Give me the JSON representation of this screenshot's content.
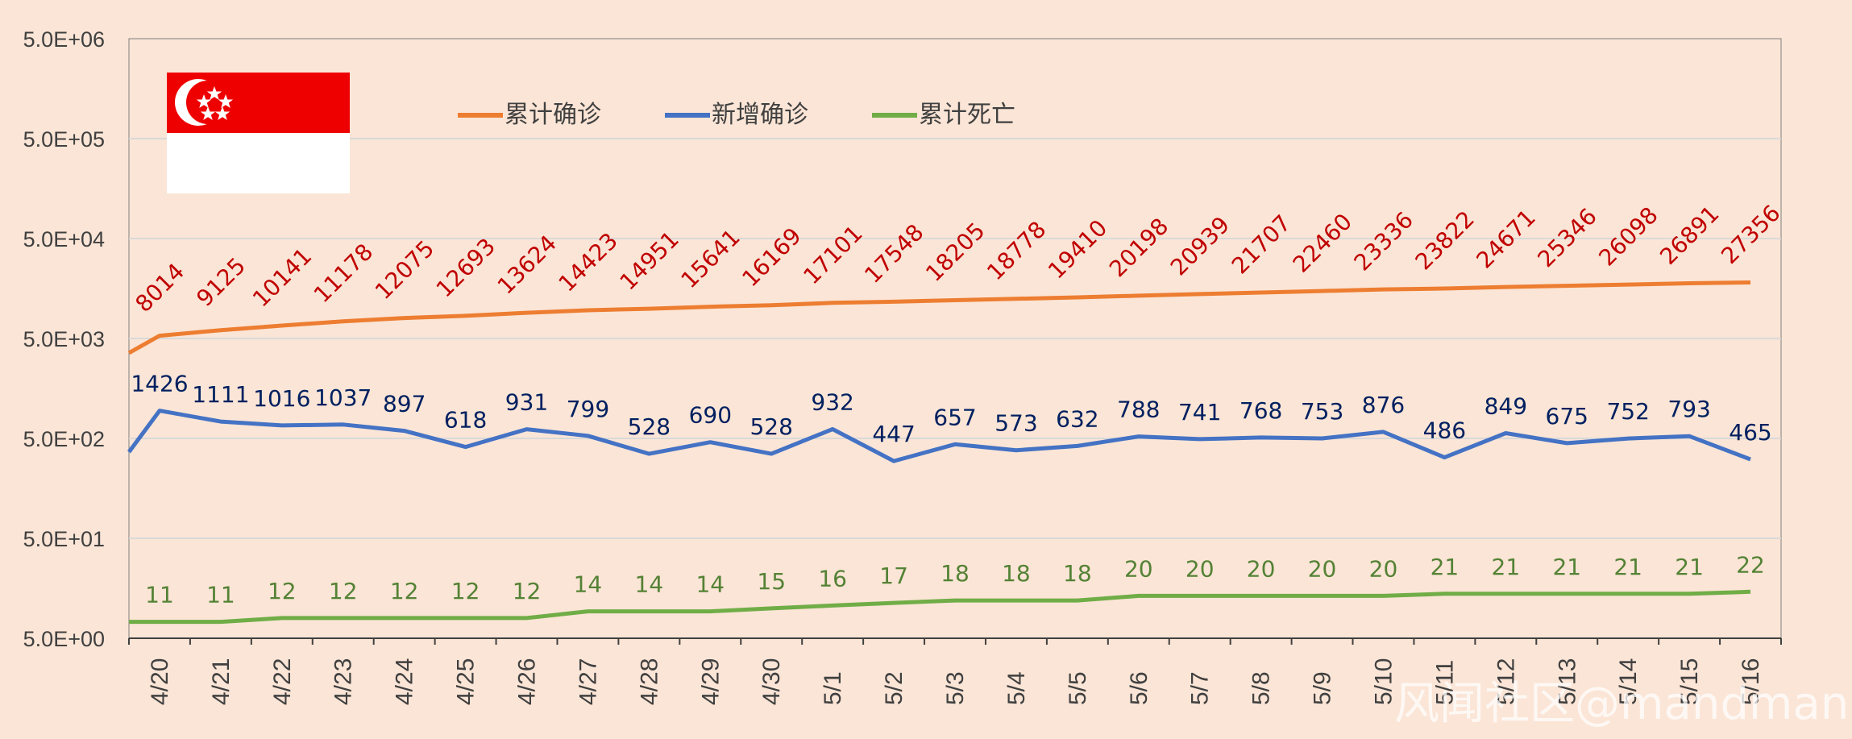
{
  "chart_data": {
    "type": "line",
    "yscale": "log",
    "ylim": [
      5,
      5000000
    ],
    "yticks": [
      "5.0E+00",
      "5.0E+01",
      "5.0E+02",
      "5.0E+03",
      "5.0E+04",
      "5.0E+05",
      "5.0E+06"
    ],
    "ytick_values": [
      5,
      50,
      500,
      5000,
      50000,
      500000,
      5000000
    ],
    "grid": true,
    "legend_position": "top",
    "categories": [
      "4/20",
      "4/21",
      "4/22",
      "4/23",
      "4/24",
      "4/25",
      "4/26",
      "4/27",
      "4/28",
      "4/29",
      "4/30",
      "5/1",
      "5/2",
      "5/3",
      "5/4",
      "5/5",
      "5/6",
      "5/7",
      "5/8",
      "5/9",
      "5/10",
      "5/11",
      "5/12",
      "5/13",
      "5/14",
      "5/15",
      "5/16"
    ],
    "series": [
      {
        "name": "累计确诊",
        "color": "#ed7d31",
        "label_color": "#c00000",
        "values": [
          8014,
          9125,
          10141,
          11178,
          12075,
          12693,
          13624,
          14423,
          14951,
          15641,
          16169,
          17101,
          17548,
          18205,
          18778,
          19410,
          20198,
          20939,
          21707,
          22460,
          23336,
          23822,
          24671,
          25346,
          26098,
          26891,
          27356
        ]
      },
      {
        "name": "新增确诊",
        "color": "#4472c4",
        "label_color": "#002060",
        "values": [
          1426,
          1111,
          1016,
          1037,
          897,
          618,
          931,
          799,
          528,
          690,
          528,
          932,
          447,
          657,
          573,
          632,
          788,
          741,
          768,
          753,
          876,
          486,
          849,
          675,
          752,
          793,
          465
        ]
      },
      {
        "name": "累计死亡",
        "color": "#70ad47",
        "label_color": "#548235",
        "values": [
          11,
          11,
          12,
          12,
          12,
          12,
          12,
          14,
          14,
          14,
          15,
          16,
          17,
          18,
          18,
          18,
          20,
          20,
          20,
          20,
          20,
          21,
          21,
          21,
          21,
          21,
          22
        ]
      }
    ]
  },
  "flag": {
    "name": "singapore-flag",
    "red": "#ef0000",
    "white": "#ffffff"
  },
  "watermark": "风闻社区@mandman"
}
